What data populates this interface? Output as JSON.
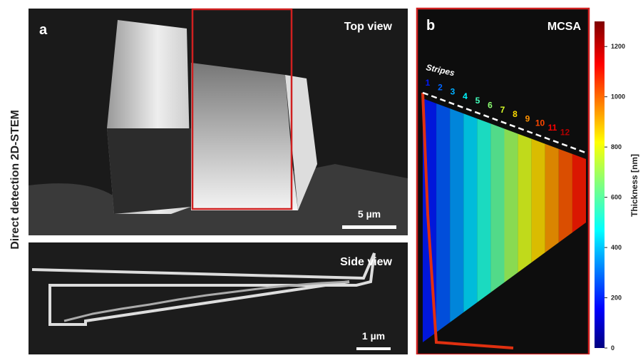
{
  "side_label": "Direct detection 2D-STEM",
  "panel_a": {
    "letter": "a",
    "top_title": "Top view",
    "top_scale": "5 µm",
    "bottom_title": "Side view",
    "bottom_scale": "1 µm"
  },
  "panel_b": {
    "letter": "b",
    "title": "MCSA",
    "stripes_label": "Stripes",
    "stripe_numbers": [
      "1",
      "2",
      "3",
      "4",
      "5",
      "6",
      "7",
      "8",
      "9",
      "10",
      "11",
      "12"
    ]
  },
  "colorbar": {
    "label": "Thickness [nm]",
    "lim": [
      0,
      1300
    ],
    "ticks": [
      0,
      200,
      400,
      600,
      800,
      1000,
      1200
    ]
  }
}
